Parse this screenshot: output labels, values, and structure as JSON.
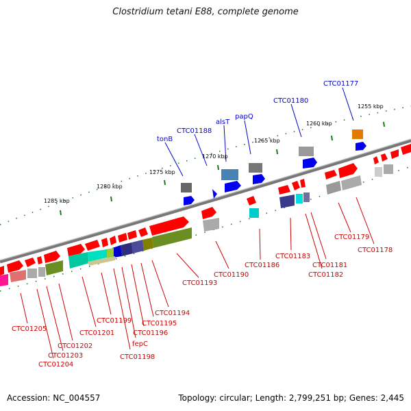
{
  "title": "Clostridium tetani E88, complete genome",
  "footer": {
    "accession": "Accession: NC_004557",
    "summary": "Topology: circular; Length: 2,799,251 bp; Genes: 2,445"
  },
  "colors": {
    "backbone": "#888888",
    "tick": "#1a7a1a",
    "forward_gene": "#ff0000",
    "upper_label": "#0000cc",
    "lower_label": "#cc0000"
  },
  "scale_labels": [
    "1255 kbp",
    "1260 kbp",
    "1265 kbp",
    "1270 kbp",
    "1275 kbp",
    "1280 kbp",
    "1285 kbp"
  ],
  "upper_labels": [
    "CTC01177",
    "CTC01180",
    "papQ",
    "alsT",
    "CTC01188",
    "tonB"
  ],
  "lower_labels": [
    "CTC01179",
    "CTC01178",
    "CTC01183",
    "CTC01181",
    "CTC01182",
    "CTC01186",
    "CTC01190",
    "CTC01193",
    "CTC01194",
    "CTC01195",
    "CTC01196",
    "fepC",
    "CTC01198",
    "CTC01199",
    "CTC01201",
    "CTC01202",
    "CTC01203",
    "CTC01204",
    "CTC01205"
  ]
}
